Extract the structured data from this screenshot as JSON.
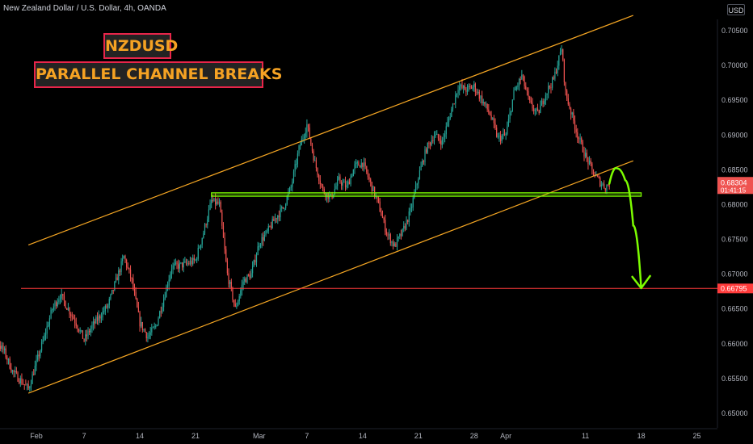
{
  "header": {
    "title": "New Zealand Dollar / U.S. Dollar, 4h, OANDA",
    "currency": "USD"
  },
  "labels": {
    "symbol": "NZDUSD",
    "pattern": "PARALLEL CHANNEL BREAKS"
  },
  "colors": {
    "background": "#000000",
    "candle_up": "#26a69a",
    "candle_down": "#ef5350",
    "channel": "#f5a623",
    "support_zone": "#7cfc00",
    "target_line": "#ff3b3b",
    "arrow": "#7cfc00",
    "last_price_tag": "#ef5350"
  },
  "chart_data": {
    "type": "candlestick",
    "symbol": "NZDUSD",
    "timeframe": "4h",
    "source": "OANDA",
    "ylim": [
      0.6495,
      0.708
    ],
    "y_ticks": [
      "0.70500",
      "0.70000",
      "0.69500",
      "0.69000",
      "0.68500",
      "0.68000",
      "0.67500",
      "0.67000",
      "0.66500",
      "0.66000",
      "0.65500",
      "0.65000"
    ],
    "x_ticks": [
      "Feb",
      "7",
      "14",
      "21",
      "Mar",
      "7",
      "14",
      "21",
      "28",
      "Apr",
      "11",
      "18",
      "25"
    ],
    "last_price": "0.68304",
    "countdown": "01:41:15",
    "target_price": "0.66795",
    "target_level": 0.66795,
    "support_zone": [
      0.6812,
      0.6817
    ],
    "channel_upper": [
      {
        "date": "Jan 31",
        "price": 0.6742
      },
      {
        "date": "Apr 17",
        "price": 0.7072
      }
    ],
    "channel_lower": [
      {
        "date": "Jan 31",
        "price": 0.6529
      },
      {
        "date": "Apr 17",
        "price": 0.6863
      }
    ],
    "price_path": [
      {
        "date": "Jan 24",
        "price": 0.6695
      },
      {
        "date": "Jan 25",
        "price": 0.669
      },
      {
        "date": "Jan 26",
        "price": 0.662
      },
      {
        "date": "Jan 28",
        "price": 0.6588
      },
      {
        "date": "Jan 29",
        "price": 0.656
      },
      {
        "date": "Jan 31",
        "price": 0.6535
      },
      {
        "date": "Feb 2",
        "price": 0.661
      },
      {
        "date": "Feb 3",
        "price": 0.665
      },
      {
        "date": "Feb 4",
        "price": 0.667
      },
      {
        "date": "Feb 6",
        "price": 0.663
      },
      {
        "date": "Feb 7",
        "price": 0.6605
      },
      {
        "date": "Feb 8",
        "price": 0.6625
      },
      {
        "date": "Feb 10",
        "price": 0.6655
      },
      {
        "date": "Feb 11",
        "price": 0.669
      },
      {
        "date": "Feb 12",
        "price": 0.6725
      },
      {
        "date": "Feb 13",
        "price": 0.669
      },
      {
        "date": "Feb 14",
        "price": 0.663
      },
      {
        "date": "Feb 15",
        "price": 0.661
      },
      {
        "date": "Feb 16",
        "price": 0.6625
      },
      {
        "date": "Feb 17",
        "price": 0.6665
      },
      {
        "date": "Feb 18",
        "price": 0.671
      },
      {
        "date": "Feb 20",
        "price": 0.6715
      },
      {
        "date": "Feb 21",
        "price": 0.672
      },
      {
        "date": "Feb 22",
        "price": 0.676
      },
      {
        "date": "Feb 23",
        "price": 0.6805
      },
      {
        "date": "Feb 24",
        "price": 0.68
      },
      {
        "date": "Feb 25",
        "price": 0.67
      },
      {
        "date": "Feb 26",
        "price": 0.665
      },
      {
        "date": "Feb 27",
        "price": 0.669
      },
      {
        "date": "Feb 28",
        "price": 0.67
      },
      {
        "date": "Mar 1",
        "price": 0.6745
      },
      {
        "date": "Mar 2",
        "price": 0.676
      },
      {
        "date": "Mar 3",
        "price": 0.678
      },
      {
        "date": "Mar 4",
        "price": 0.6795
      },
      {
        "date": "Mar 5",
        "price": 0.6825
      },
      {
        "date": "Mar 6",
        "price": 0.688
      },
      {
        "date": "Mar 7",
        "price": 0.6915
      },
      {
        "date": "Mar 8",
        "price": 0.686
      },
      {
        "date": "Mar 9",
        "price": 0.682
      },
      {
        "date": "Mar 10",
        "price": 0.681
      },
      {
        "date": "Mar 11",
        "price": 0.6835
      },
      {
        "date": "Mar 12",
        "price": 0.6825
      },
      {
        "date": "Mar 13",
        "price": 0.6855
      },
      {
        "date": "Mar 14",
        "price": 0.686
      },
      {
        "date": "Mar 15",
        "price": 0.683
      },
      {
        "date": "Mar 16",
        "price": 0.68
      },
      {
        "date": "Mar 17",
        "price": 0.676
      },
      {
        "date": "Mar 18",
        "price": 0.674
      },
      {
        "date": "Mar 19",
        "price": 0.676
      },
      {
        "date": "Mar 20",
        "price": 0.679
      },
      {
        "date": "Mar 21",
        "price": 0.684
      },
      {
        "date": "Mar 22",
        "price": 0.688
      },
      {
        "date": "Mar 23",
        "price": 0.69
      },
      {
        "date": "Mar 24",
        "price": 0.689
      },
      {
        "date": "Mar 25",
        "price": 0.693
      },
      {
        "date": "Mar 26",
        "price": 0.697
      },
      {
        "date": "Mar 27",
        "price": 0.6965
      },
      {
        "date": "Mar 28",
        "price": 0.697
      },
      {
        "date": "Mar 29",
        "price": 0.695
      },
      {
        "date": "Mar 30",
        "price": 0.693
      },
      {
        "date": "Mar 31",
        "price": 0.6895
      },
      {
        "date": "Apr 1",
        "price": 0.69
      },
      {
        "date": "Apr 2",
        "price": 0.696
      },
      {
        "date": "Apr 3",
        "price": 0.6985
      },
      {
        "date": "Apr 4",
        "price": 0.6945
      },
      {
        "date": "Apr 5",
        "price": 0.693
      },
      {
        "date": "Apr 6",
        "price": 0.696
      },
      {
        "date": "Apr 7",
        "price": 0.698
      },
      {
        "date": "Apr 8",
        "price": 0.7025
      },
      {
        "date": "Apr 8b",
        "price": 0.696
      },
      {
        "date": "Apr 9",
        "price": 0.694
      },
      {
        "date": "Apr 10",
        "price": 0.69
      },
      {
        "date": "Apr 11",
        "price": 0.687
      },
      {
        "date": "Apr 12",
        "price": 0.6845
      },
      {
        "date": "Apr 13",
        "price": 0.683
      },
      {
        "date": "Apr 13b",
        "price": 0.6825
      },
      {
        "date": "Apr 14",
        "price": 0.683
      }
    ],
    "projection": [
      {
        "date": "Apr 14",
        "price": 0.683
      },
      {
        "date": "Apr 15",
        "price": 0.6852
      },
      {
        "date": "Apr 16",
        "price": 0.6835
      },
      {
        "date": "Apr 17",
        "price": 0.677
      },
      {
        "date": "Apr 18",
        "price": 0.668
      }
    ]
  }
}
